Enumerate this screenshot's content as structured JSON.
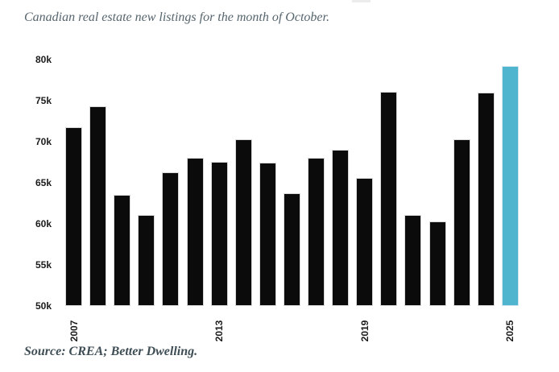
{
  "title": "Canadian real estate new listings for the month of October.",
  "source": "Source: CREA; Better Dwelling.",
  "colors": {
    "background": "#ffffff",
    "bar": "#0b0b0b",
    "bar_edge": "#d8d8d8",
    "highlight_bar": "#4fb4ce",
    "title_text": "#56656e",
    "source_text": "#3f4d55",
    "axis_text": "#1c1c1c"
  },
  "chart_data": {
    "type": "bar",
    "title": "Canadian real estate new listings for the month of October.",
    "categories": [
      2007,
      2008,
      2009,
      2010,
      2011,
      2012,
      2013,
      2014,
      2015,
      2016,
      2017,
      2018,
      2019,
      2020,
      2021,
      2022,
      2023,
      2024,
      2025
    ],
    "values": [
      71800,
      74400,
      63600,
      61100,
      66300,
      68100,
      67600,
      70300,
      67500,
      63800,
      68100,
      69100,
      65600,
      76100,
      61100,
      60300,
      70300,
      76000,
      79300
    ],
    "highlight_category": 2025,
    "xlabel": "",
    "ylabel": "",
    "ylim": [
      50000,
      80000
    ],
    "y_tick_values": [
      50000,
      55000,
      60000,
      65000,
      70000,
      75000,
      80000
    ],
    "y_tick_labels": [
      "50k",
      "55k",
      "60k",
      "65k",
      "70k",
      "75k",
      "80k"
    ],
    "x_tick_values": [
      2007,
      2013,
      2019,
      2025
    ],
    "x_tick_labels": [
      "2007",
      "2013",
      "2019",
      "2025"
    ],
    "grid": false,
    "legend": false,
    "bar_color": "#0b0b0b",
    "highlight_color": "#4fb4ce"
  }
}
